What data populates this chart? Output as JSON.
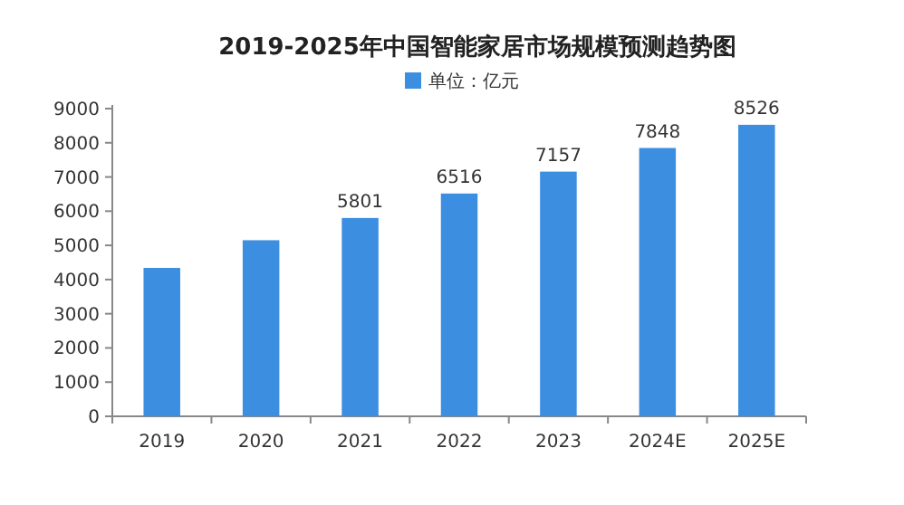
{
  "chart_data": {
    "type": "bar",
    "title": "2019-2025年中国智能家居市场规模预测趋势图",
    "categories": [
      "2019",
      "2020",
      "2021",
      "2022",
      "2023",
      "2024E",
      "2025E"
    ],
    "series": [
      {
        "name": "单位：亿元",
        "color": "#3b8ee0",
        "values": [
          4340,
          5150,
          5801,
          6516,
          7157,
          7848,
          8526
        ],
        "value_labels": [
          null,
          null,
          "5801",
          "6516",
          "7157",
          "7848",
          "8526"
        ]
      }
    ],
    "ylim": [
      0,
      9000
    ],
    "yticks": [
      0,
      1000,
      2000,
      3000,
      4000,
      5000,
      6000,
      7000,
      8000,
      9000
    ],
    "legend": "top",
    "grid": false
  }
}
